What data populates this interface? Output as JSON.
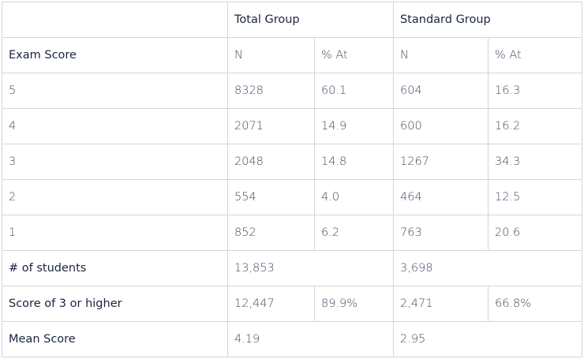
{
  "groups": {
    "total": "Total Group",
    "standard": "Standard Group"
  },
  "columns": {
    "exam_score": "Exam Score",
    "n": "N",
    "pct_at": "% At"
  },
  "score_rows": [
    {
      "score": "5",
      "total_n": "8328",
      "total_pct": "60.1",
      "standard_n": "604",
      "standard_pct": "16.3"
    },
    {
      "score": "4",
      "total_n": "2071",
      "total_pct": "14.9",
      "standard_n": "600",
      "standard_pct": "16.2"
    },
    {
      "score": "3",
      "total_n": "2048",
      "total_pct": "14.8",
      "standard_n": "1267",
      "standard_pct": "34.3"
    },
    {
      "score": "2",
      "total_n": "554",
      "total_pct": "4.0",
      "standard_n": "464",
      "standard_pct": "12.5"
    },
    {
      "score": "1",
      "total_n": "852",
      "total_pct": "6.2",
      "standard_n": "763",
      "standard_pct": "20.6"
    }
  ],
  "summary": {
    "students": {
      "label": "# of students",
      "total": "13,853",
      "standard": "3,698"
    },
    "three_or_higher": {
      "label": "Score of 3 or higher",
      "total_n": "12,447",
      "total_pct": "89.9%",
      "standard_n": "2,471",
      "standard_pct": "66.8%"
    },
    "mean": {
      "label": "Mean Score",
      "total": "4.19",
      "standard": "2.95"
    }
  }
}
